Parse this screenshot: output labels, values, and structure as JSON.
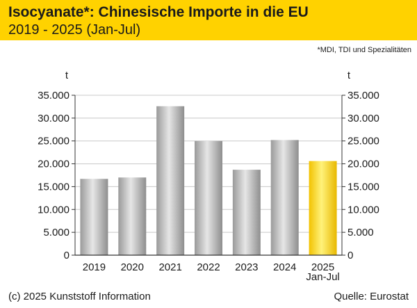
{
  "header": {
    "title": "Isocyanate*: Chinesische Importe in die EU",
    "subtitle": "2019 - 2025 (Jan-Jul)"
  },
  "footnote": "*MDI, TDI und Spezialitäten",
  "footer": {
    "copyright": "(c) 2025 Kunststoff Information",
    "source": "Quelle: Eurostat"
  },
  "colors": {
    "header_bg": "#ffd200",
    "bar_gray": "#b8b8b8",
    "bar_highlight": "#ffd92e"
  },
  "chart_data": {
    "type": "bar",
    "categories": [
      "2019",
      "2020",
      "2021",
      "2022",
      "2023",
      "2024",
      "2025\nJan-Jul"
    ],
    "values": [
      16700,
      17000,
      32600,
      25000,
      18700,
      25200,
      20600
    ],
    "highlight_index": 6,
    "unit_left": "t",
    "unit_right": "t",
    "ylim": [
      0,
      35000
    ],
    "yticks": [
      "0",
      "5.000",
      "10.000",
      "15.000",
      "20.000",
      "25.000",
      "30.000",
      "35.000"
    ],
    "grid": true,
    "dual_y_axis": true
  }
}
